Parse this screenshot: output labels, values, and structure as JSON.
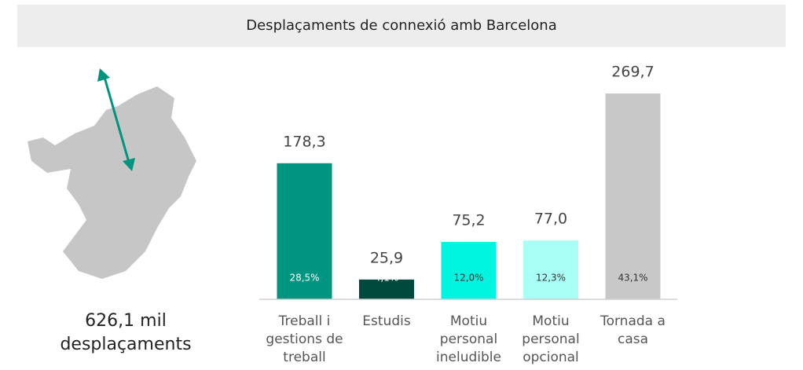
{
  "chart_data": {
    "type": "bar",
    "title": "Desplaçaments de connexió amb Barcelona",
    "total_label": "626,1 mil desplaçaments",
    "categories": [
      "Treball i gestions de treball",
      "Estudis",
      "Motiu personal ineludible",
      "Motiu personal opcional",
      "Tornada a casa"
    ],
    "values": [
      178.3,
      25.9,
      75.2,
      77.0,
      269.7
    ],
    "value_labels": [
      "178,3",
      "25,9",
      "75,2",
      "77,0",
      "269,7"
    ],
    "share_labels": [
      "28,5%",
      "4,1%",
      "12,0%",
      "12,3%",
      "43,1%"
    ],
    "colors": [
      "#009580",
      "#004a3d",
      "#00f5e0",
      "#a8fff5",
      "#c8c8c8"
    ],
    "ylim": [
      0,
      280
    ]
  }
}
